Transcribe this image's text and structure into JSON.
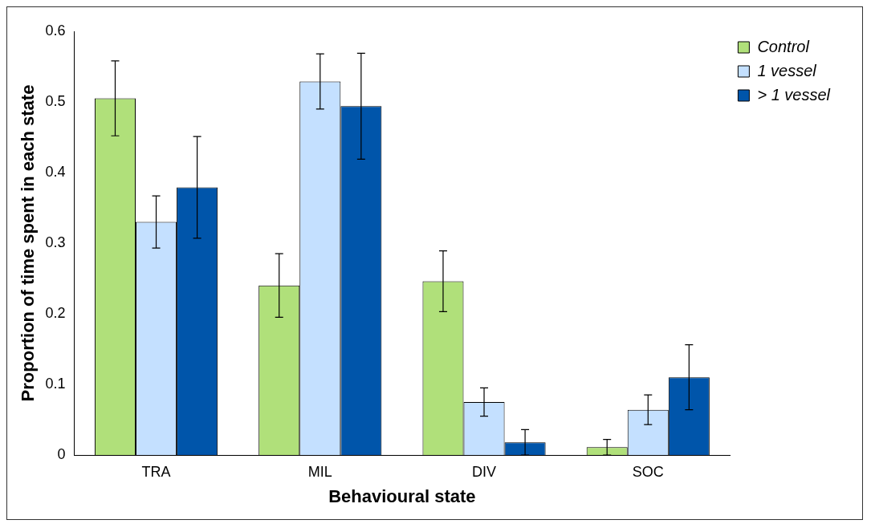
{
  "chart_data": {
    "type": "bar",
    "xlabel": "Behavioural state",
    "ylabel": "Proportion of time spent in each state",
    "categories": [
      "TRA",
      "MIL",
      "DIV",
      "SOC"
    ],
    "series": [
      {
        "name": "Control",
        "color": "#b0e07a",
        "values": [
          0.505,
          0.24,
          0.246,
          0.011
        ],
        "errors": [
          0.053,
          0.045,
          0.043,
          0.011
        ]
      },
      {
        "name": "1 vessel",
        "color": "#c4e0ff",
        "values": [
          0.33,
          0.529,
          0.075,
          0.064
        ],
        "errors": [
          0.037,
          0.039,
          0.02,
          0.021
        ]
      },
      {
        "name": "> 1 vessel",
        "color": "#0055aa",
        "values": [
          0.379,
          0.494,
          0.018,
          0.11
        ],
        "errors": [
          0.072,
          0.075,
          0.018,
          0.046
        ]
      }
    ],
    "ylim": [
      0,
      0.6
    ],
    "yticks": [
      0,
      0.1,
      0.2,
      0.3,
      0.4,
      0.5,
      0.6
    ],
    "grid": false,
    "legend": "top right"
  }
}
